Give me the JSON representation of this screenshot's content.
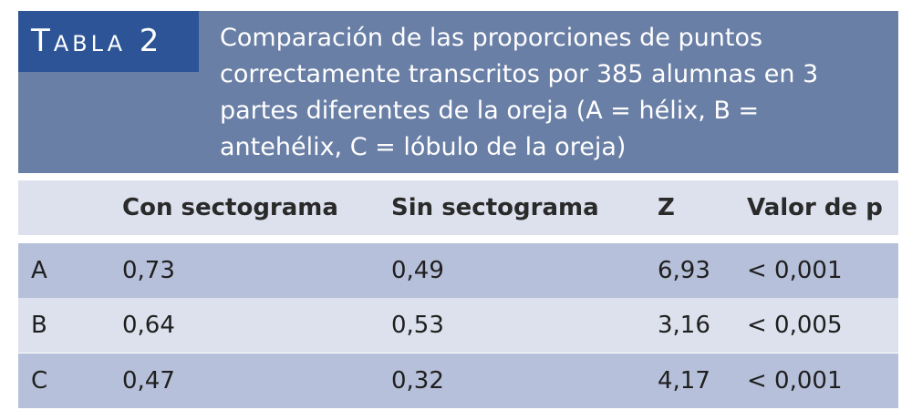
{
  "table": {
    "label": "Tabla 2",
    "caption": "Comparación de las proporciones de puntos correctamente transcritos por 385 alumnas en 3 partes diferentes de la oreja (A = hélix, B = antehélix, C = lóbulo de la oreja)",
    "columns": [
      "",
      "Con sectograma",
      "Sin sectograma",
      "Z",
      "Valor de p"
    ],
    "rows": [
      {
        "label": "A",
        "con": "0,73",
        "sin": "0,49",
        "z": "6,93",
        "p": "< 0,001"
      },
      {
        "label": "B",
        "con": "0,64",
        "sin": "0,53",
        "z": "3,16",
        "p": "< 0,005"
      },
      {
        "label": "C",
        "con": "0,47",
        "sin": "0,32",
        "z": "4,17",
        "p": "< 0,001"
      }
    ],
    "colors": {
      "label_bg": "#2c5496",
      "header_bg": "#6a7fa6",
      "row_light": "#dde1ed",
      "row_dark": "#b7c0da"
    }
  }
}
